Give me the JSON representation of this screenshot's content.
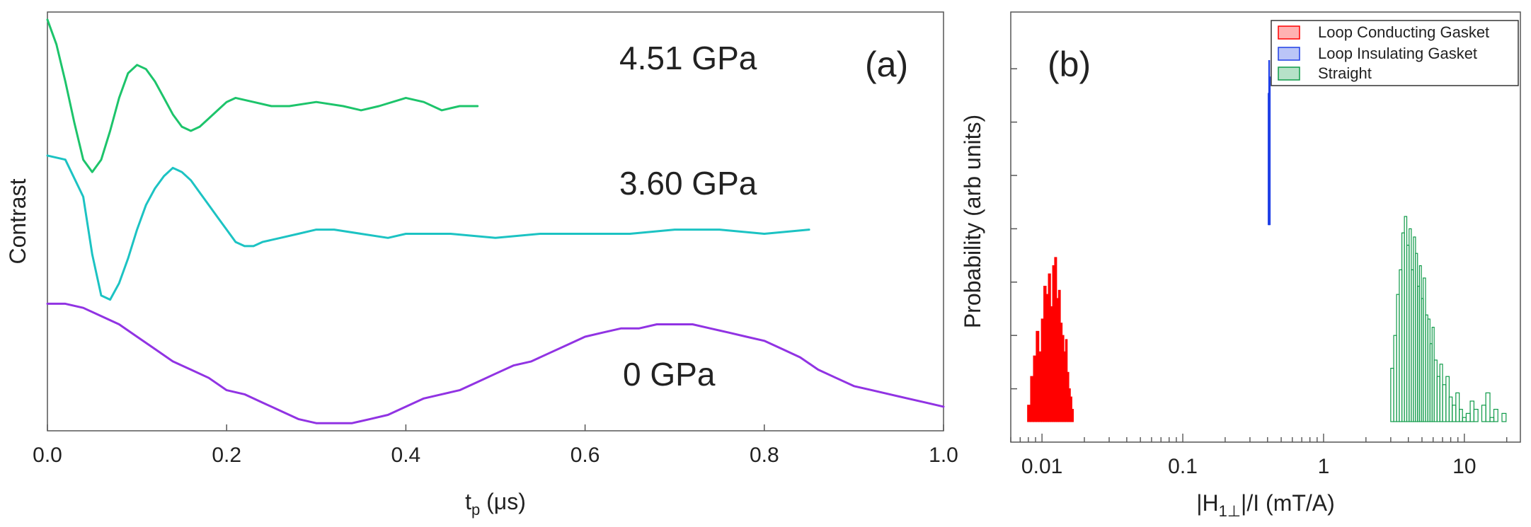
{
  "colors": {
    "p451": "#1DC46B",
    "p360": "#1CC3C3",
    "p0": "#9133E3",
    "conducting": "#FF0000",
    "insulating": "#1F3FE6",
    "straight": "#0E9A48"
  },
  "chart_data": [
    {
      "type": "line",
      "panel": "(a)",
      "xlabel_main": "t",
      "xlabel_sub": "p",
      "xlabel_unit": " (μs)",
      "ylabel": "Contrast",
      "xlim": [
        0.0,
        1.0
      ],
      "ylim": [
        0.0,
        1.0
      ],
      "xticks": [
        "0.0",
        "0.2",
        "0.4",
        "0.6",
        "0.8",
        "1.0"
      ],
      "grid": false,
      "series": [
        {
          "name": "4.51 GPa",
          "color_key": "p451",
          "x": [
            0.0,
            0.01,
            0.02,
            0.03,
            0.04,
            0.05,
            0.06,
            0.07,
            0.08,
            0.09,
            0.1,
            0.11,
            0.12,
            0.13,
            0.14,
            0.15,
            0.16,
            0.17,
            0.18,
            0.19,
            0.2,
            0.21,
            0.23,
            0.25,
            0.27,
            0.3,
            0.33,
            0.35,
            0.37,
            0.4,
            0.42,
            0.44,
            0.46,
            0.48
          ],
          "y": [
            0.99,
            0.93,
            0.84,
            0.74,
            0.65,
            0.62,
            0.65,
            0.72,
            0.8,
            0.86,
            0.88,
            0.87,
            0.84,
            0.8,
            0.76,
            0.73,
            0.72,
            0.73,
            0.75,
            0.77,
            0.79,
            0.8,
            0.79,
            0.78,
            0.78,
            0.79,
            0.78,
            0.77,
            0.78,
            0.8,
            0.79,
            0.77,
            0.78,
            0.78
          ]
        },
        {
          "name": "3.60 GPa",
          "color_key": "p360",
          "x": [
            0.0,
            0.02,
            0.04,
            0.05,
            0.06,
            0.07,
            0.08,
            0.09,
            0.1,
            0.11,
            0.12,
            0.13,
            0.14,
            0.15,
            0.16,
            0.17,
            0.18,
            0.19,
            0.2,
            0.21,
            0.22,
            0.23,
            0.24,
            0.26,
            0.28,
            0.3,
            0.32,
            0.35,
            0.38,
            0.4,
            0.45,
            0.5,
            0.55,
            0.6,
            0.65,
            0.7,
            0.75,
            0.8,
            0.85
          ],
          "y": [
            0.66,
            0.65,
            0.56,
            0.42,
            0.32,
            0.31,
            0.35,
            0.41,
            0.48,
            0.54,
            0.58,
            0.61,
            0.63,
            0.62,
            0.6,
            0.57,
            0.54,
            0.51,
            0.48,
            0.45,
            0.44,
            0.44,
            0.45,
            0.46,
            0.47,
            0.48,
            0.48,
            0.47,
            0.46,
            0.47,
            0.47,
            0.46,
            0.47,
            0.47,
            0.47,
            0.48,
            0.48,
            0.47,
            0.48
          ]
        },
        {
          "name": "0 GPa",
          "color_key": "p0",
          "x": [
            0.0,
            0.02,
            0.04,
            0.06,
            0.08,
            0.1,
            0.12,
            0.14,
            0.16,
            0.18,
            0.2,
            0.22,
            0.24,
            0.26,
            0.28,
            0.3,
            0.32,
            0.34,
            0.36,
            0.38,
            0.4,
            0.42,
            0.44,
            0.46,
            0.48,
            0.5,
            0.52,
            0.54,
            0.56,
            0.58,
            0.6,
            0.62,
            0.64,
            0.66,
            0.68,
            0.7,
            0.72,
            0.74,
            0.76,
            0.78,
            0.8,
            0.82,
            0.84,
            0.86,
            0.88,
            0.9,
            0.92,
            0.94,
            0.96,
            0.98,
            1.0
          ],
          "y": [
            0.3,
            0.3,
            0.29,
            0.27,
            0.25,
            0.22,
            0.19,
            0.16,
            0.14,
            0.12,
            0.09,
            0.08,
            0.06,
            0.04,
            0.02,
            0.01,
            0.01,
            0.01,
            0.02,
            0.03,
            0.05,
            0.07,
            0.08,
            0.09,
            0.11,
            0.13,
            0.15,
            0.16,
            0.18,
            0.2,
            0.22,
            0.23,
            0.24,
            0.24,
            0.25,
            0.25,
            0.25,
            0.24,
            0.23,
            0.22,
            0.21,
            0.19,
            0.17,
            0.14,
            0.12,
            0.1,
            0.09,
            0.08,
            0.07,
            0.06,
            0.05
          ]
        }
      ],
      "annotations": [
        "4.51 GPa",
        "3.60 GPa",
        "0 GPa"
      ]
    },
    {
      "type": "bar",
      "subtype": "histogram",
      "panel": "(b)",
      "xscale": "log",
      "xlabel_pre": "|H",
      "xlabel_sub": "1⊥",
      "xlabel_post": "|/I (mT/A)",
      "ylabel": "Probability (arb units)",
      "xlim": [
        0.006,
        25
      ],
      "ylim": [
        0.0,
        1.0
      ],
      "xticks": [
        {
          "value": 0.01,
          "label": "0.01"
        },
        {
          "value": 0.1,
          "label": "0.1"
        },
        {
          "value": 1,
          "label": "1"
        },
        {
          "value": 10,
          "label": "10"
        }
      ],
      "legend_position": "top-right",
      "series": [
        {
          "name": "Loop Conducting Gasket",
          "color_key": "conducting",
          "filled": true,
          "bins": [
            0.0075,
            0.0079,
            0.0083,
            0.0087,
            0.0091,
            0.0095,
            0.0099,
            0.0103,
            0.0107,
            0.0111,
            0.0115,
            0.0119,
            0.0123,
            0.0127,
            0.0131,
            0.0135,
            0.0139,
            0.0143,
            0.0147,
            0.0151,
            0.0155,
            0.0159,
            0.0163,
            0.0167,
            0.0171
          ],
          "values": [
            0.04,
            0.09,
            0.16,
            0.21,
            0.27,
            0.22,
            0.3,
            0.38,
            0.36,
            0.41,
            0.33,
            0.43,
            0.45,
            0.35,
            0.37,
            0.29,
            0.26,
            0.22,
            0.25,
            0.17,
            0.13,
            0.11,
            0.08,
            0.05,
            0.03
          ]
        },
        {
          "name": "Loop Insulating Gasket",
          "color_key": "insulating",
          "filled": true,
          "bins": [
            0.404,
            0.408,
            0.412
          ],
          "values": [
            0.85,
            0.93,
            0.89
          ],
          "base": 0.53
        },
        {
          "name": "Straight",
          "color_key": "straight",
          "filled": false,
          "bins": [
            3.0,
            3.15,
            3.3,
            3.45,
            3.6,
            3.75,
            3.9,
            4.05,
            4.2,
            4.35,
            4.5,
            4.65,
            4.8,
            4.95,
            5.1,
            5.3,
            5.5,
            5.7,
            5.9,
            6.1,
            6.4,
            6.7,
            7.0,
            7.4,
            7.8,
            8.2,
            8.7,
            9.2,
            9.7,
            10.3,
            11.0,
            11.7,
            12.5,
            13.3,
            14.2,
            15.2,
            16.2,
            17.3,
            18.5
          ],
          "values": [
            0.18,
            0.26,
            0.36,
            0.42,
            0.51,
            0.55,
            0.48,
            0.52,
            0.42,
            0.5,
            0.46,
            0.38,
            0.43,
            0.35,
            0.4,
            0.31,
            0.3,
            0.24,
            0.28,
            0.2,
            0.16,
            0.19,
            0.14,
            0.16,
            0.11,
            0.09,
            0.12,
            0.08,
            0.06,
            0.07,
            0.1,
            0.08,
            0.05,
            0.09,
            0.12,
            0.06,
            0.08,
            0.05,
            0.07
          ]
        }
      ],
      "legend": [
        "Loop Conducting Gasket",
        "Loop Insulating Gasket",
        "Straight"
      ]
    }
  ]
}
